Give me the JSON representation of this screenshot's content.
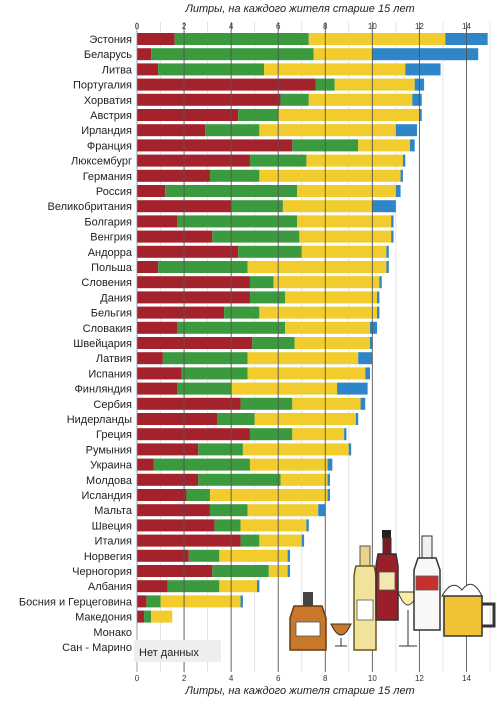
{
  "chart_data": {
    "type": "bar",
    "orientation": "horizontal",
    "stacked": true,
    "title": "Литры, на каждого жителя старше 15 лет",
    "xlabel_top": "Литры, на каждого жителя старше 15 лет",
    "xlabel_bottom": "Литры, на каждого жителя старше 15 лет",
    "xlim": [
      0,
      15
    ],
    "x_ticks": [
      0,
      2,
      4,
      6,
      8,
      10,
      12,
      14
    ],
    "grid": true,
    "legend": "none",
    "no_data_label": "Нет данных",
    "series_colors": [
      "#a4222b",
      "#3c9a3e",
      "#f2cc2c",
      "#2e86c8"
    ],
    "categories": [
      "Эстония",
      "Беларусь",
      "Литва",
      "Португалия",
      "Хорватия",
      "Австрия",
      "Ирландия",
      "Франция",
      "Люксембург",
      "Германия",
      "Россия",
      "Великобритания",
      "Болгария",
      "Венгрия",
      "Андорра",
      "Польша",
      "Словения",
      "Дания",
      "Бельгия",
      "Словакия",
      "Швейцария",
      "Латвия",
      "Испания",
      "Финляндия",
      "Сербия",
      "Нидерланды",
      "Греция",
      "Румыния",
      "Украина",
      "Молдова",
      "Исландия",
      "Мальта",
      "Швеция",
      "Италия",
      "Норвегия",
      "Черногория",
      "Албания",
      "Босния и Герцеговина",
      "Македония",
      "Монако",
      "Сан - Марино"
    ],
    "series": [
      {
        "values": [
          1.6,
          0.6,
          0.9,
          7.6,
          6.1,
          4.3,
          2.9,
          6.6,
          4.8,
          3.1,
          1.2,
          4.0,
          1.7,
          3.2,
          4.3,
          0.9,
          4.8,
          4.8,
          3.7,
          1.7,
          4.9,
          1.1,
          1.9,
          1.7,
          4.4,
          3.4,
          4.8,
          2.6,
          0.7,
          2.6,
          2.1,
          3.1,
          3.3,
          4.4,
          2.2,
          3.2,
          1.3,
          0.4,
          0.3,
          null,
          null
        ]
      },
      {
        "values": [
          5.7,
          6.9,
          4.5,
          0.8,
          1.2,
          1.7,
          2.3,
          2.8,
          2.4,
          2.1,
          5.6,
          2.2,
          5.1,
          3.7,
          2.7,
          3.8,
          1.0,
          1.5,
          1.5,
          4.6,
          1.8,
          3.6,
          2.8,
          2.3,
          2.2,
          1.6,
          1.8,
          1.9,
          4.1,
          3.5,
          1.0,
          1.6,
          1.1,
          0.8,
          1.3,
          2.4,
          2.2,
          0.6,
          0.3,
          null,
          null
        ]
      },
      {
        "values": [
          5.8,
          2.5,
          6.0,
          3.4,
          4.4,
          6.0,
          5.8,
          2.2,
          4.1,
          6.0,
          4.2,
          3.8,
          4.0,
          3.9,
          3.6,
          5.9,
          4.5,
          3.9,
          5.0,
          3.6,
          3.2,
          4.7,
          5.0,
          4.5,
          2.9,
          4.3,
          2.2,
          4.5,
          3.3,
          2.0,
          5.0,
          3.0,
          2.8,
          1.8,
          2.9,
          0.8,
          1.6,
          3.4,
          0.9,
          null,
          null
        ]
      },
      {
        "values": [
          1.8,
          4.5,
          1.5,
          0.4,
          0.4,
          0.1,
          0.9,
          0.2,
          0.1,
          0.1,
          0.2,
          1.0,
          0.1,
          0.1,
          0.1,
          0.1,
          0.1,
          0.1,
          0.1,
          0.3,
          0.1,
          0.6,
          0.2,
          1.3,
          0.2,
          0.1,
          0.1,
          0.1,
          0.2,
          0.1,
          0.1,
          0.3,
          0.1,
          0.1,
          0.1,
          0.1,
          0.1,
          0.1,
          0.0,
          null,
          null
        ]
      }
    ]
  }
}
